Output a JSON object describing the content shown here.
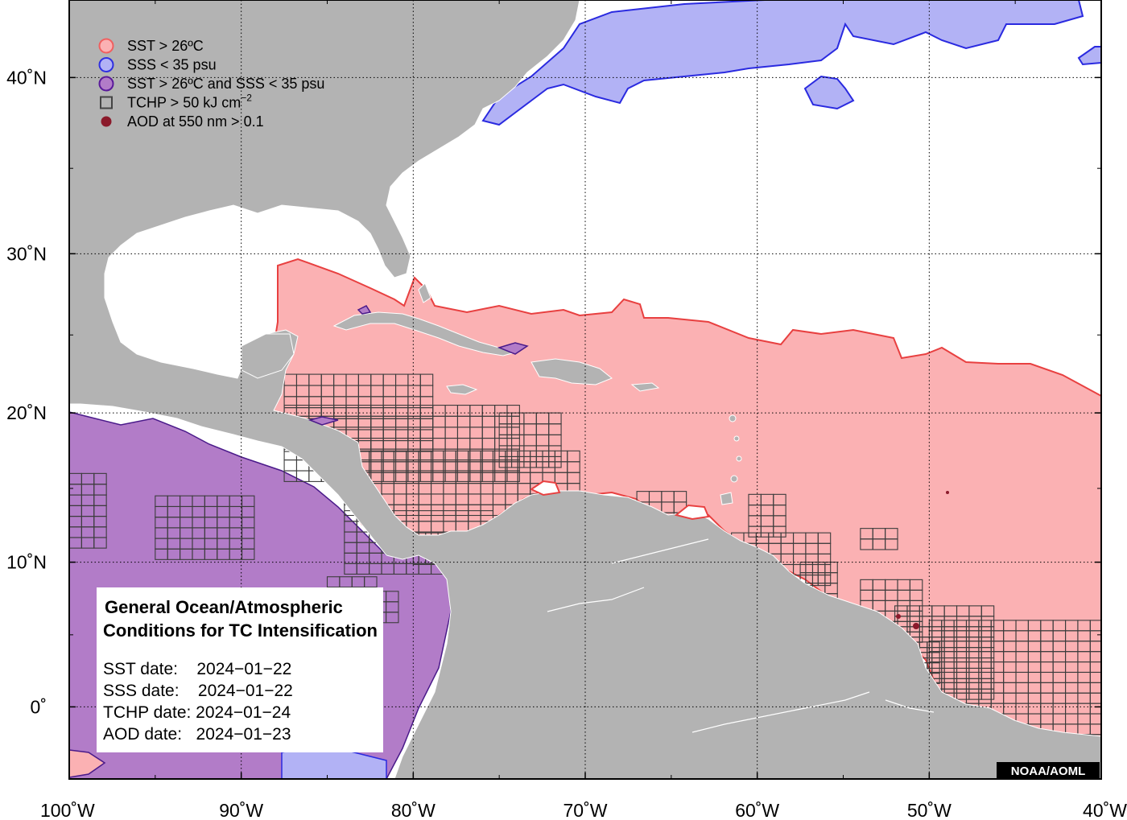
{
  "map": {
    "x_axis": {
      "ticks": [
        {
          "lon": -100,
          "label": "100˚W"
        },
        {
          "lon": -90,
          "label": "90˚W"
        },
        {
          "lon": -80,
          "label": "80˚W"
        },
        {
          "lon": -70,
          "label": "70˚W"
        },
        {
          "lon": -60,
          "label": "60˚W"
        },
        {
          "lon": -50,
          "label": "50˚W"
        },
        {
          "lon": -40,
          "label": "40˚W"
        }
      ]
    },
    "y_axis": {
      "ticks": [
        {
          "lat": 40,
          "label": "40˚N"
        },
        {
          "lat": 30,
          "label": "30˚N"
        },
        {
          "lat": 20,
          "label": "20˚N"
        },
        {
          "lat": 10,
          "label": "10˚N"
        },
        {
          "lat": 0,
          "label": "0˚"
        }
      ]
    },
    "extent": {
      "lon": [
        -100,
        -40
      ],
      "lat": [
        -5,
        44
      ]
    },
    "grid": "dotted",
    "colors": {
      "land": "#b3b3b3",
      "ocean": "#ffffff",
      "sst": "#fbb1b3",
      "sst_edge": "#e84040",
      "sss": "#b2b2f5",
      "sss_edge": "#2a2ae0",
      "both": "#b27cc8",
      "both_edge": "#4a1a8a",
      "tchp_edge": "#3c3c3c",
      "aod": "#8b1a2b"
    }
  },
  "legend": {
    "items": [
      {
        "label": "SST > 26ºC",
        "symbol": "circle",
        "fill": "#fbb1b3",
        "stroke": "#f06060"
      },
      {
        "label": "SSS < 35 psu",
        "symbol": "circle",
        "fill": "#b2b2f5",
        "stroke": "#3030e0"
      },
      {
        "label": "SST > 26ºC and SSS < 35 psu",
        "symbol": "circle",
        "fill": "#b27cc8",
        "stroke": "#5a1a9a"
      },
      {
        "label": "TCHP > 50 kJ cm",
        "superscript": "−2",
        "symbol": "square",
        "fill": "none",
        "stroke": "#444444"
      },
      {
        "label": "AOD at 550 nm > 0.1",
        "symbol": "dot",
        "fill": "#8b1a2b",
        "stroke": "#8b1a2b"
      }
    ]
  },
  "info_box": {
    "title_line1": "General Ocean/Atmospheric",
    "title_line2": "Conditions for TC Intensification",
    "sst_date": "SST date:    2024−01−22",
    "sss_date": "SSS date:    2024−01−22",
    "tchp_date": "TCHP date: 2024−01−24",
    "aod_date": "AOD date:   2024−01−23"
  },
  "credit": "NOAA/AOML"
}
